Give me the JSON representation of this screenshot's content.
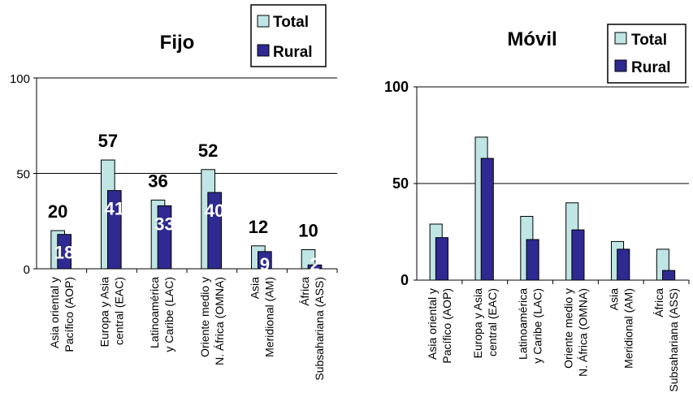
{
  "colors": {
    "total": "#bfe5e5",
    "rural": "#2e2a91",
    "outline": "#000000"
  },
  "chart_data": [
    {
      "type": "bar",
      "title": "Fijo",
      "categories": [
        [
          "Asia oriental y",
          "Pacífico (AOP)"
        ],
        [
          "Europa y Asia",
          "central (EAC)"
        ],
        [
          "Latinoamérica",
          "y Caribe (LAC)"
        ],
        [
          "Oriente medio y",
          "N. África (OMNA)"
        ],
        [
          "Asia",
          "Meridional (AM)"
        ],
        [
          "África",
          "Subsahariana (ASS)"
        ]
      ],
      "series": [
        {
          "name": "Total",
          "values": [
            20,
            57,
            36,
            52,
            12,
            10
          ]
        },
        {
          "name": "Rural",
          "values": [
            18,
            41,
            33,
            40,
            9,
            2
          ]
        }
      ],
      "data_labels": {
        "total": [
          "20",
          "57",
          "36",
          "52",
          "12",
          "10"
        ],
        "rural": [
          "18",
          "41",
          "33",
          "40",
          "9",
          "2"
        ]
      },
      "ylim": [
        0,
        100
      ],
      "yticks": [
        "0",
        "50",
        "100"
      ],
      "grid": true,
      "legend": "top-right"
    },
    {
      "type": "bar",
      "title": "Móvil",
      "categories": [
        [
          "Asia oriental y",
          "Pacífico (AOP)"
        ],
        [
          "Europa y Asia",
          "central (EAC)"
        ],
        [
          "Latinoamérica",
          "y Caribe (LAC)"
        ],
        [
          "Oriente medio y",
          "N. África (OMNA)"
        ],
        [
          "Asia",
          "Meridional (AM)"
        ],
        [
          "África",
          "Subsahariana (ASS)"
        ]
      ],
      "series": [
        {
          "name": "Total",
          "values": [
            29,
            74,
            33,
            40,
            20,
            16
          ]
        },
        {
          "name": "Rural",
          "values": [
            22,
            63,
            21,
            26,
            16,
            5
          ]
        }
      ],
      "ylim": [
        0,
        100
      ],
      "yticks": [
        "0",
        "50",
        "100"
      ],
      "grid": true,
      "legend": "top-right"
    }
  ]
}
